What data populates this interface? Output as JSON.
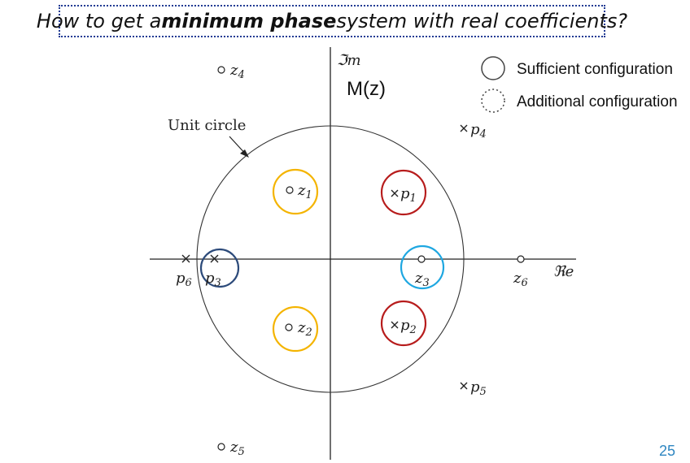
{
  "title": {
    "before": "How to get a ",
    "bold": "minimum phase",
    "after": " system with real coefficients?"
  },
  "axes": {
    "imag_label": "ℑm",
    "real_label": "ℜe"
  },
  "system_label": "M(z)",
  "unit_circle_label": "Unit circle",
  "legend": {
    "sufficient": "Sufficient configuration",
    "additional": "Additional configuration"
  },
  "zeros": [
    {
      "name": "z1",
      "base": "z",
      "sub": "1"
    },
    {
      "name": "z2",
      "base": "z",
      "sub": "2"
    },
    {
      "name": "z3",
      "base": "z",
      "sub": "3"
    },
    {
      "name": "z4",
      "base": "z",
      "sub": "4"
    },
    {
      "name": "z5",
      "base": "z",
      "sub": "5"
    },
    {
      "name": "z6",
      "base": "z",
      "sub": "6"
    }
  ],
  "poles": [
    {
      "name": "p1",
      "base": "p",
      "sub": "1"
    },
    {
      "name": "p2",
      "base": "p",
      "sub": "2"
    },
    {
      "name": "p3",
      "base": "p",
      "sub": "3"
    },
    {
      "name": "p4",
      "base": "p",
      "sub": "4"
    },
    {
      "name": "p5",
      "base": "p",
      "sub": "5"
    },
    {
      "name": "p6",
      "base": "p",
      "sub": "6"
    }
  ],
  "highlight_colors": {
    "zeros_inside": "#f4b400",
    "poles_inside": "#b71c1c",
    "real_zero": "#1ea7e1",
    "real_pole": "#2c4a7a"
  },
  "slide_number": "25"
}
